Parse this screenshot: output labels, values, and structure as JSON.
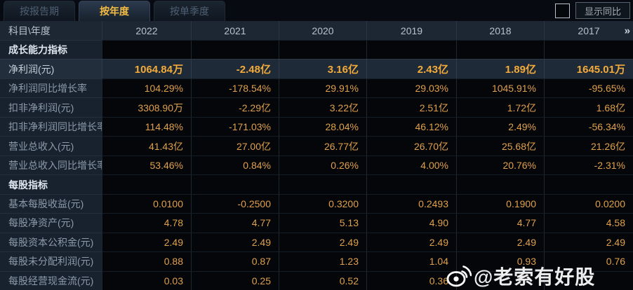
{
  "tabs": [
    {
      "label": "按报告期",
      "active": false
    },
    {
      "label": "按年度",
      "active": true
    },
    {
      "label": "按单季度",
      "active": false
    }
  ],
  "controls": {
    "show_yoy_label": "显示同比",
    "checkbox_checked": false
  },
  "table": {
    "corner_label": "科目\\年度",
    "years": [
      "2022",
      "2021",
      "2020",
      "2019",
      "2018",
      "2017"
    ],
    "more_icon": "»"
  },
  "rows": [
    {
      "type": "section",
      "label": "成长能力指标",
      "values": [
        "",
        "",
        "",
        "",
        "",
        ""
      ]
    },
    {
      "type": "data",
      "highlight": true,
      "label": "净利润(元)",
      "values": [
        "1064.84万",
        "-2.48亿",
        "3.16亿",
        "2.43亿",
        "1.89亿",
        "1645.01万"
      ]
    },
    {
      "type": "data",
      "label": "净利润同比增长率",
      "values": [
        "104.29%",
        "-178.54%",
        "29.91%",
        "29.03%",
        "1045.91%",
        "-95.65%"
      ]
    },
    {
      "type": "data",
      "label": "扣非净利润(元)",
      "values": [
        "3308.90万",
        "-2.29亿",
        "3.22亿",
        "2.51亿",
        "1.72亿",
        "1.68亿"
      ]
    },
    {
      "type": "data",
      "label": "扣非净利润同比增长率",
      "values": [
        "114.48%",
        "-171.03%",
        "28.04%",
        "46.12%",
        "2.49%",
        "-56.34%"
      ]
    },
    {
      "type": "data",
      "label": "营业总收入(元)",
      "values": [
        "41.43亿",
        "27.00亿",
        "26.77亿",
        "26.70亿",
        "25.68亿",
        "21.26亿"
      ]
    },
    {
      "type": "data",
      "label": "营业总收入同比增长率",
      "values": [
        "53.46%",
        "0.84%",
        "0.26%",
        "4.00%",
        "20.76%",
        "-2.31%"
      ]
    },
    {
      "type": "section",
      "label": "每股指标",
      "values": [
        "",
        "",
        "",
        "",
        "",
        ""
      ]
    },
    {
      "type": "data",
      "label": "基本每股收益(元)",
      "values": [
        "0.0100",
        "-0.2500",
        "0.3200",
        "0.2493",
        "0.1900",
        "0.0200"
      ]
    },
    {
      "type": "data",
      "label": "每股净资产(元)",
      "values": [
        "4.78",
        "4.77",
        "5.13",
        "4.90",
        "4.77",
        "4.58"
      ]
    },
    {
      "type": "data",
      "label": "每股资本公积金(元)",
      "values": [
        "2.49",
        "2.49",
        "2.49",
        "2.49",
        "2.49",
        "2.49"
      ]
    },
    {
      "type": "data",
      "label": "每股未分配利润(元)",
      "values": [
        "0.88",
        "0.87",
        "1.23",
        "1.04",
        "0.93",
        "0.76"
      ]
    },
    {
      "type": "data",
      "label": "每股经营现金流(元)",
      "values": [
        "0.03",
        "0.25",
        "0.52",
        "0.36",
        "",
        ""
      ]
    }
  ],
  "watermark": {
    "icon": "weibo-icon",
    "text": "@老索有好股"
  },
  "colors": {
    "accent_gold": "#f5bc42",
    "value_gold": "#e1a04b",
    "highlight_row_bg": "#1e2a37",
    "header_bg": "#1d2733",
    "label_col_bg": "#18222e",
    "data_cell_bg": "#04060a"
  }
}
